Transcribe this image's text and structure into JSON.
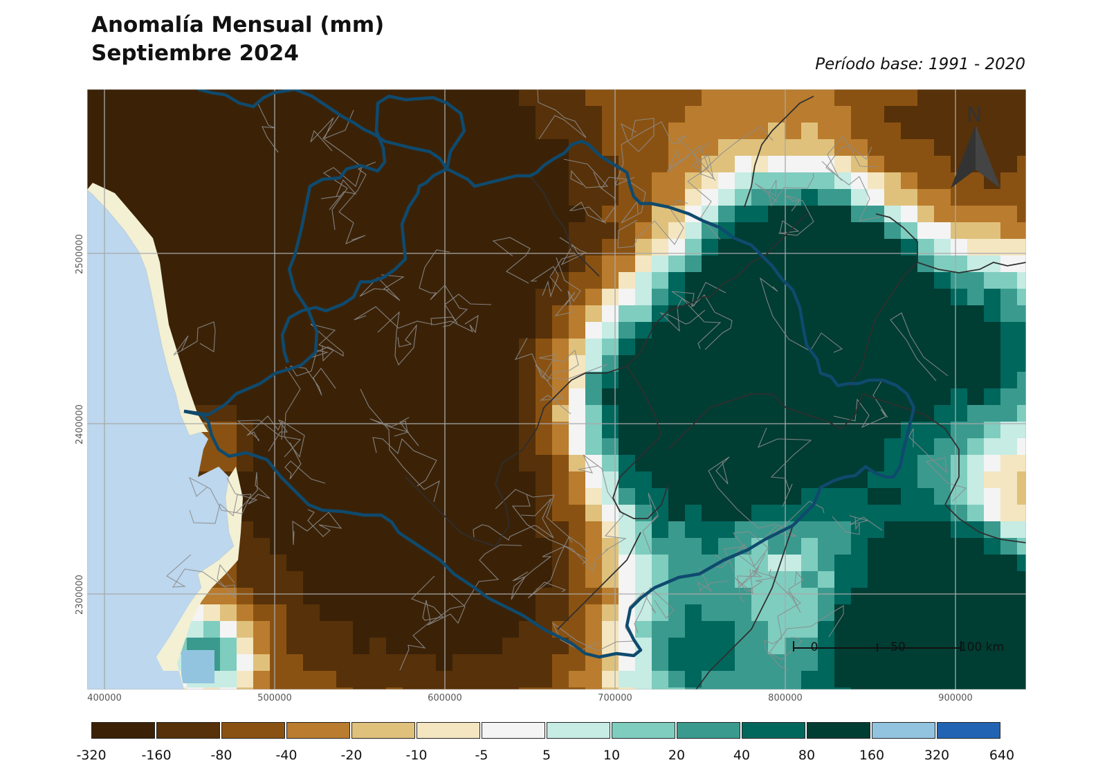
{
  "title": {
    "line1": "Anomalía Mensual (mm)",
    "line2": "Septiembre 2024"
  },
  "subtitle": "Período base: 1991 - 2020",
  "map": {
    "x_ticks": [
      "400000",
      "500000",
      "600000",
      "700000",
      "800000",
      "900000"
    ],
    "y_ticks": [
      "2500000",
      "2400000",
      "2300000"
    ],
    "north_label": "N",
    "scale_labels": [
      "0",
      "50",
      "100 km"
    ],
    "sea_color": "#bcd7ee",
    "coast_color": "#f3f0d4",
    "state_boundary_color": "#0f4a6e"
  },
  "legend": {
    "breaks": [
      "-320",
      "-160",
      "-80",
      "-40",
      "-20",
      "-10",
      "-5",
      "5",
      "10",
      "20",
      "40",
      "80",
      "160",
      "320",
      "640"
    ],
    "colors": [
      "#3b2207",
      "#573109",
      "#8a5212",
      "#ba7c2e",
      "#dfc17c",
      "#f4e6c0",
      "#f4f4f4",
      "#c6ece4",
      "#7fcdbf",
      "#3a9a8e",
      "#00675d",
      "#003d33",
      "#92c4e0",
      "#2264b3"
    ]
  }
}
